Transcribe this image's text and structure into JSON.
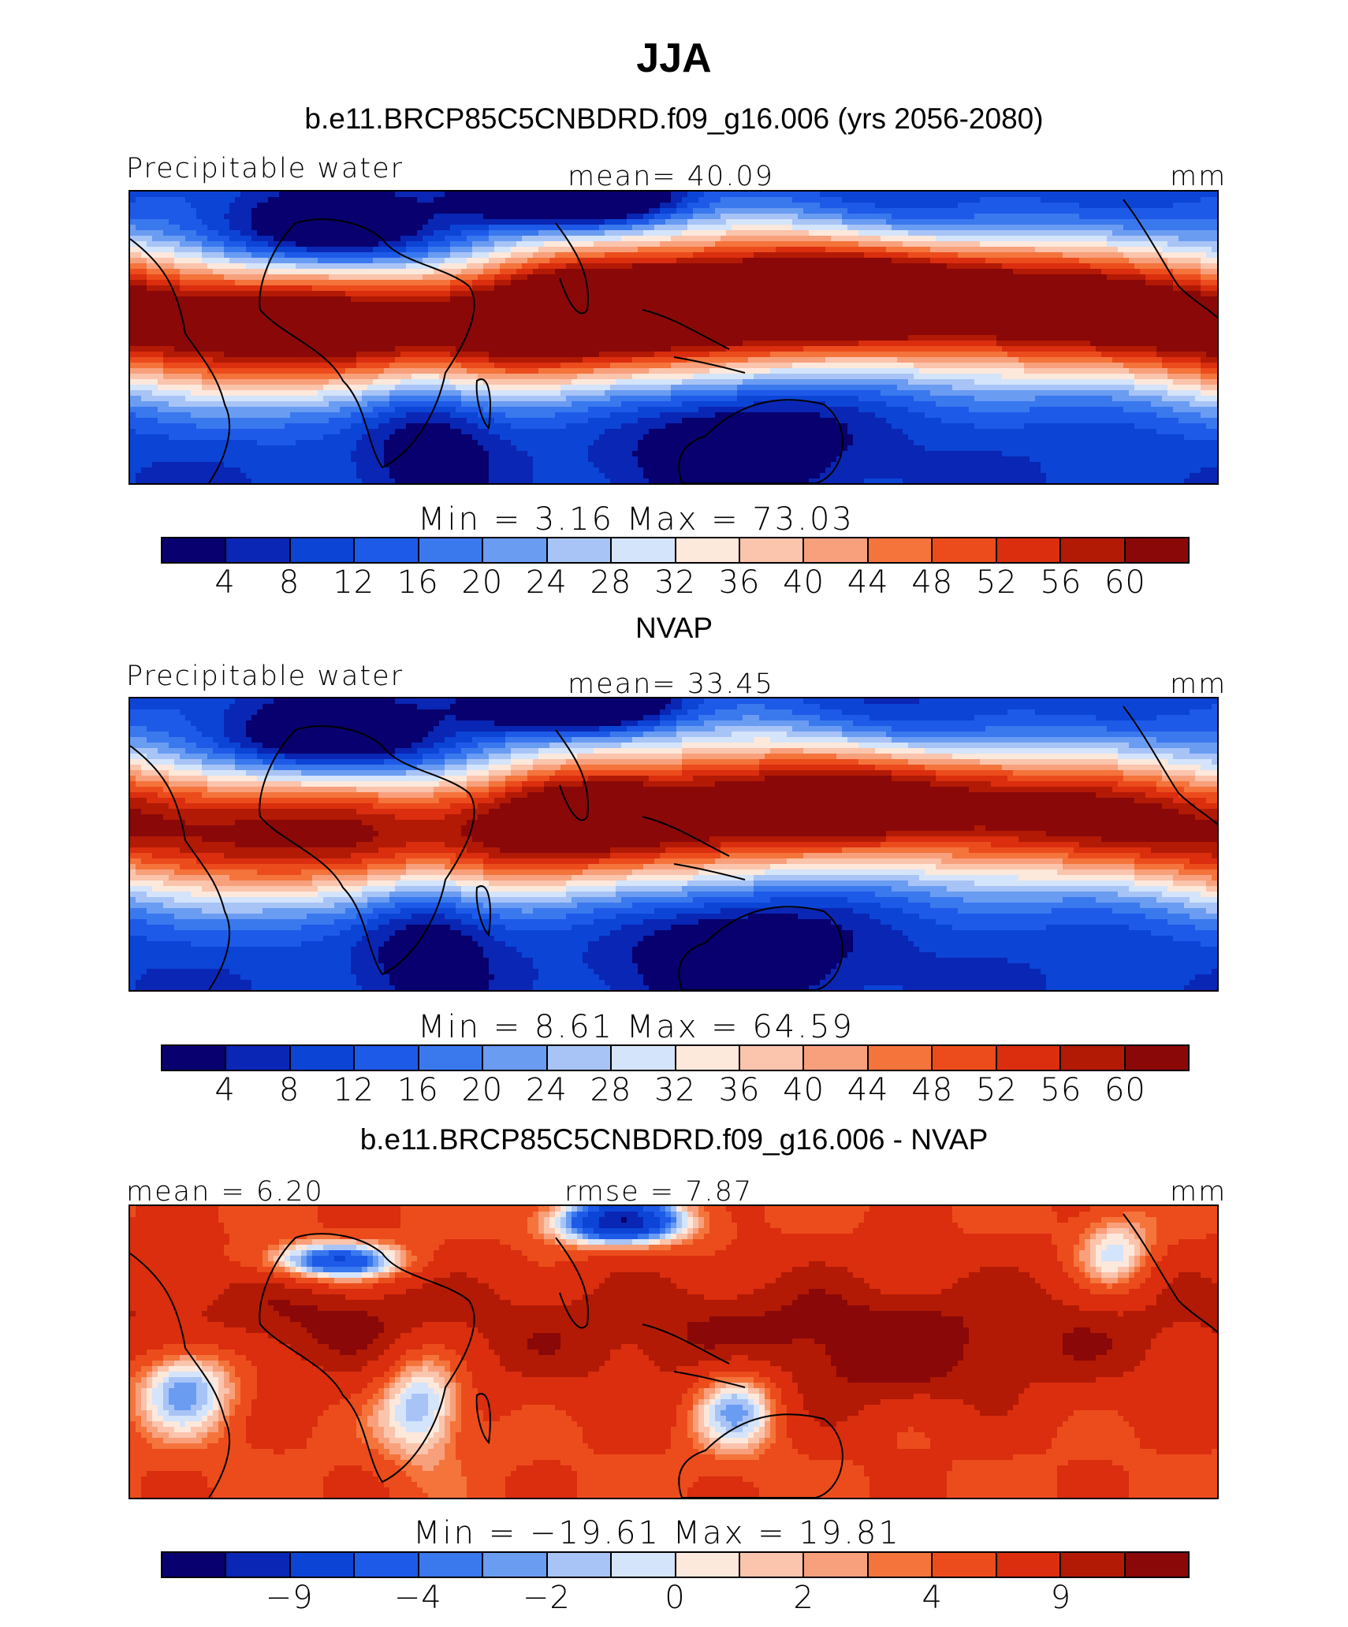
{
  "title": "JJA",
  "colors": [
    "#08006e",
    "#0a26b4",
    "#0c44d6",
    "#1e5ae8",
    "#3a78ee",
    "#6a9cf2",
    "#a8c4f6",
    "#d4e4fa",
    "#fde8dc",
    "#fbc4ac",
    "#f8a07c",
    "#f4743c",
    "#ec4c1c",
    "#da2e0e",
    "#b21a06",
    "#8a0808"
  ],
  "panels": [
    {
      "subtitle": "b.e11.BRCP85C5CNBDRD.f09_g16.006 (yrs 2056-2080)",
      "left_label": "Precipitable water",
      "center_label": "mean=   40.09",
      "right_label": "mm",
      "minmax_text": "Min  =     3.16  Max  =    73.03",
      "tick_labels": [
        "4",
        "8",
        "12",
        "16",
        "20",
        "24",
        "28",
        "32",
        "36",
        "40",
        "44",
        "48",
        "52",
        "56",
        "60"
      ],
      "field_kind": "model"
    },
    {
      "subtitle": "NVAP",
      "left_label": "Precipitable water",
      "center_label": "mean=   33.45",
      "right_label": "mm",
      "minmax_text": "Min  =     8.61  Max  =    64.59",
      "tick_labels": [
        "4",
        "8",
        "12",
        "16",
        "20",
        "24",
        "28",
        "32",
        "36",
        "40",
        "44",
        "48",
        "52",
        "56",
        "60"
      ],
      "field_kind": "obs"
    },
    {
      "subtitle": "b.e11.BRCP85C5CNBDRD.f09_g16.006 - NVAP",
      "left_label": "mean =    6.20",
      "center_label": "rmse =     7.87",
      "right_label": "mm",
      "minmax_text": "Min  = −19.61  Max  =    19.81",
      "tick_labels": [
        "−9",
        "−4",
        "−2",
        "0",
        "2",
        "4",
        "9"
      ],
      "field_kind": "diff"
    }
  ]
}
